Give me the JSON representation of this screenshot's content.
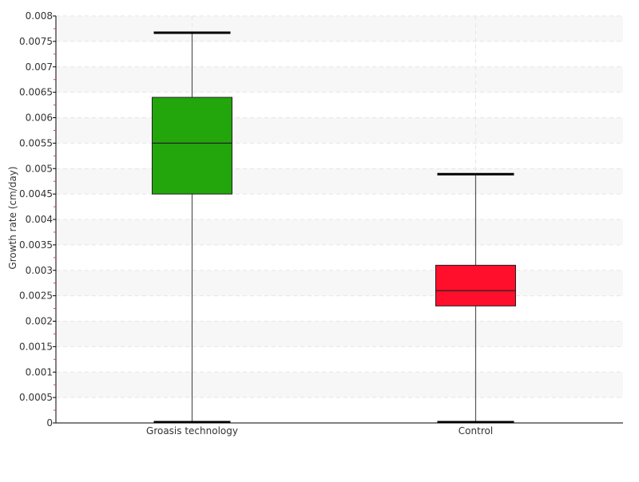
{
  "chart_data": {
    "type": "box",
    "title": "",
    "xlabel": "",
    "ylabel": "Growth rate (cm/day)",
    "ylim": [
      0,
      0.008
    ],
    "yticks": [
      "0",
      "0.0005",
      "0.001",
      "0.0015",
      "0.002",
      "0.0025",
      "0.003",
      "0.0035",
      "0.004",
      "0.0045",
      "0.005",
      "0.0055",
      "0.006",
      "0.0065",
      "0.007",
      "0.0075",
      "0.008"
    ],
    "grid": "horizontal dashed, alternating light bands",
    "categories": [
      "Groasis technology",
      "Control"
    ],
    "boxes": [
      {
        "category": "Groasis technology",
        "min": 0.0,
        "q1": 0.0045,
        "median": 0.0055,
        "q3": 0.0064,
        "max": 0.00767,
        "color": "#22a60c"
      },
      {
        "category": "Control",
        "min": 0.0,
        "q1": 0.0023,
        "median": 0.0026,
        "q3": 0.0031,
        "max": 0.00489,
        "color": "#ff0f2b"
      }
    ]
  }
}
